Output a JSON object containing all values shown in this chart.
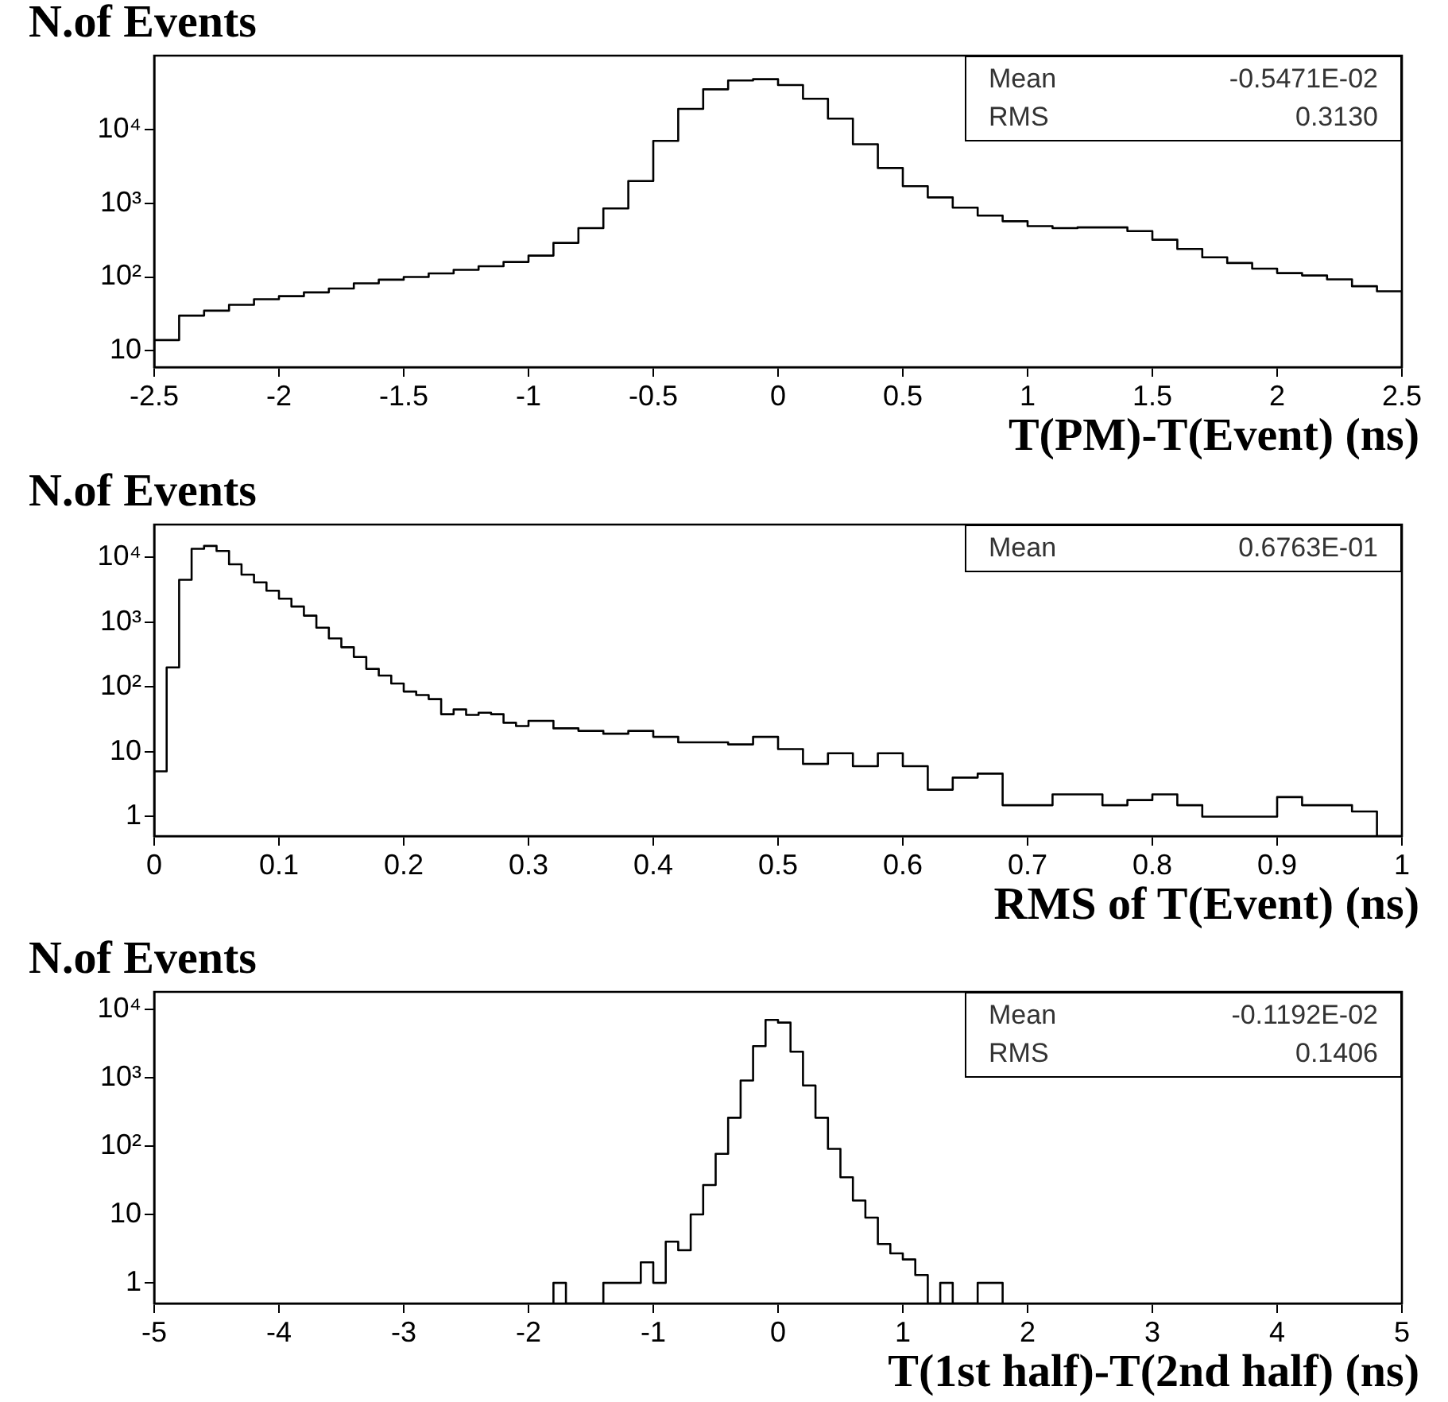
{
  "chart_data": [
    {
      "type": "histogram",
      "ylabel": "N.of Events",
      "xlabel": "T(PM)-T(Event) (ns)",
      "color": "#000000",
      "log": "y",
      "bins": [
        -2.5,
        -2.4,
        -2.3,
        -2.2,
        -2.1,
        -2.0,
        -1.9,
        -1.8,
        -1.7,
        -1.6,
        -1.5,
        -1.4,
        -1.3,
        -1.2,
        -1.1,
        -1.0,
        -0.9,
        -0.8,
        -0.7,
        -0.6,
        -0.5,
        -0.4,
        -0.3,
        -0.2,
        -0.1,
        0,
        0.1,
        0.2,
        0.3,
        0.4,
        0.5,
        0.6,
        0.7,
        0.8,
        0.9,
        1.0,
        1.1,
        1.2,
        1.3,
        1.4,
        1.5,
        1.6,
        1.7,
        1.8,
        1.9,
        2.0,
        2.1,
        2.2,
        2.3,
        2.4,
        2.5
      ],
      "values": [
        14,
        30,
        35,
        42,
        50,
        55,
        62,
        70,
        82,
        92,
        100,
        112,
        125,
        140,
        160,
        195,
        290,
        460,
        850,
        2000,
        7000,
        19000,
        35000,
        46000,
        48000,
        40000,
        26000,
        14000,
        6300,
        3000,
        1700,
        1200,
        870,
        680,
        570,
        490,
        460,
        470,
        470,
        420,
        320,
        240,
        185,
        155,
        130,
        113,
        105,
        93,
        75,
        64
      ],
      "xlim": [
        -2.5,
        2.5
      ],
      "xticks": [
        -2.5,
        -2,
        -1.5,
        -1,
        -0.5,
        0,
        0.5,
        1,
        1.5,
        2,
        2.5
      ],
      "ylim": [
        6,
        100000
      ],
      "yticks": [
        {
          "value": 10,
          "label": "10"
        },
        {
          "value": 100,
          "label": "10²"
        },
        {
          "value": 1000,
          "label": "10³"
        },
        {
          "value": 10000,
          "label": "10⁴"
        }
      ],
      "annotations": [
        "Mean -0.5471E-02",
        "RMS 0.3130"
      ]
    },
    {
      "type": "histogram",
      "ylabel": "N.of Events",
      "xlabel": "RMS of T(Event) (ns)",
      "color": "#000000",
      "log": "y",
      "bins": [
        0,
        0.01,
        0.02,
        0.03,
        0.04,
        0.05,
        0.06,
        0.07,
        0.08,
        0.09,
        0.1,
        0.11,
        0.12,
        0.13,
        0.14,
        0.15,
        0.16,
        0.17,
        0.18,
        0.19,
        0.2,
        0.21,
        0.22,
        0.23,
        0.24,
        0.25,
        0.26,
        0.27,
        0.28,
        0.29,
        0.3,
        0.32,
        0.34,
        0.36,
        0.38,
        0.4,
        0.42,
        0.44,
        0.46,
        0.48,
        0.5,
        0.52,
        0.54,
        0.56,
        0.58,
        0.6,
        0.62,
        0.64,
        0.66,
        0.68,
        0.7,
        0.72,
        0.74,
        0.76,
        0.78,
        0.8,
        0.82,
        0.84,
        0.86,
        0.88,
        0.9,
        0.92,
        0.94,
        0.96,
        0.98,
        1.0
      ],
      "values": [
        5,
        200,
        4500,
        13500,
        15000,
        12500,
        7800,
        5400,
        4100,
        3050,
        2300,
        1740,
        1260,
        820,
        560,
        410,
        290,
        190,
        150,
        113,
        85,
        75,
        65,
        38,
        45,
        37,
        40,
        38,
        28,
        25,
        30,
        23,
        21,
        19,
        21,
        17,
        14,
        14,
        13,
        17,
        11,
        6.5,
        9.5,
        6,
        9.5,
        6,
        2.6,
        4,
        4.6,
        1.5,
        1.5,
        2.2,
        2.2,
        1.5,
        1.8,
        2.2,
        1.5,
        1,
        1,
        1,
        2,
        1.5,
        1.5,
        1.2,
        null
      ],
      "xlim": [
        0,
        1
      ],
      "xticks": [
        0,
        0.1,
        0.2,
        0.3,
        0.4,
        0.5,
        0.6,
        0.7,
        0.8,
        0.9,
        1
      ],
      "ylim": [
        0.5,
        32000
      ],
      "yticks": [
        {
          "value": 1,
          "label": "1"
        },
        {
          "value": 10,
          "label": "10"
        },
        {
          "value": 100,
          "label": "10²"
        },
        {
          "value": 1000,
          "label": "10³"
        },
        {
          "value": 10000,
          "label": "10⁴"
        }
      ],
      "annotations": [
        "Mean 0.6763E-01"
      ]
    },
    {
      "type": "histogram",
      "ylabel": "N.of Events",
      "xlabel": "T(1st half)-T(2nd half) (ns)",
      "color": "#000000",
      "log": "y",
      "bins": [
        -1.8,
        -1.7,
        -1.6,
        -1.5,
        -1.4,
        -1.3,
        -1.2,
        -1.1,
        -1.0,
        -0.9,
        -0.8,
        -0.7,
        -0.6,
        -0.5,
        -0.4,
        -0.3,
        -0.2,
        -0.1,
        0,
        0.1,
        0.2,
        0.3,
        0.4,
        0.5,
        0.6,
        0.7,
        0.8,
        0.9,
        1.0,
        1.1,
        1.2,
        1.3,
        1.4,
        1.5,
        1.6,
        1.7,
        1.8
      ],
      "values": [
        1,
        null,
        null,
        null,
        1,
        1,
        1,
        2,
        1,
        4,
        3,
        10,
        27,
        77,
        260,
        910,
        2900,
        7000,
        6400,
        2400,
        770,
        260,
        91,
        35,
        16,
        9,
        3.7,
        2.7,
        2.2,
        1.3,
        null,
        1,
        null,
        null,
        1,
        1
      ],
      "xlim": [
        -5,
        5
      ],
      "xticks": [
        -5,
        -4,
        -3,
        -2,
        -1,
        0,
        1,
        2,
        3,
        4,
        5
      ],
      "ylim": [
        0.5,
        18000
      ],
      "yticks": [
        {
          "value": 1,
          "label": "1"
        },
        {
          "value": 10,
          "label": "10"
        },
        {
          "value": 100,
          "label": "10²"
        },
        {
          "value": 1000,
          "label": "10³"
        },
        {
          "value": 10000,
          "label": "10⁴"
        }
      ],
      "annotations": [
        "Mean -0.1192E-02",
        "RMS 0.1406"
      ]
    }
  ]
}
